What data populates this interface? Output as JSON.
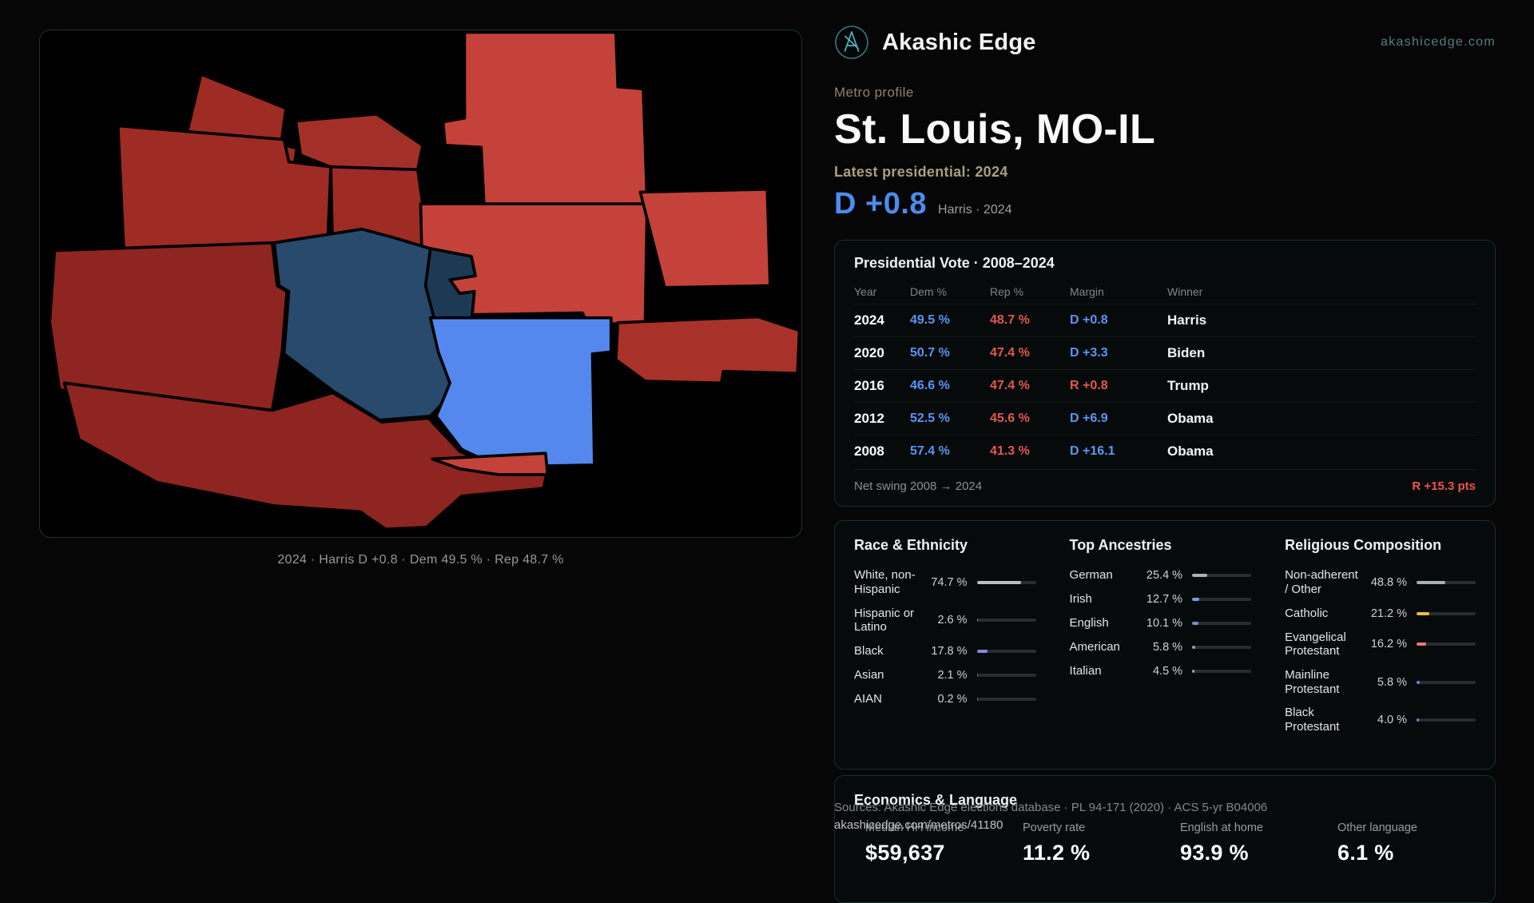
{
  "colors": {
    "dem": "#5b96f2",
    "rep": "#e2594f",
    "accent_teal": "#4fb5c5",
    "swing_red": "#ef5350",
    "headline_blue": "#4a8df0"
  },
  "brand": {
    "name": "Akashic Edge",
    "domain": "akashicedge.com"
  },
  "profile": {
    "eyebrow": "Metro profile",
    "title": "St. Louis, MO-IL",
    "latest_label": "Latest presidential: 2024",
    "margin": "D +0.8",
    "margin_sub": "Harris · 2024"
  },
  "map": {
    "caption": "2024 · Harris D +0.8 · Dem 49.5 % · Rep 48.7 %"
  },
  "pres": {
    "title": "Presidential Vote · 2008–2024",
    "headers": [
      "Year",
      "Dem %",
      "Rep %",
      "Margin",
      "Winner"
    ],
    "rows": [
      {
        "year": "2024",
        "dem": "49.5 %",
        "rep": "48.7 %",
        "margin": "D +0.8",
        "winner": "Harris"
      },
      {
        "year": "2020",
        "dem": "50.7 %",
        "rep": "47.4 %",
        "margin": "D +3.3",
        "winner": "Biden"
      },
      {
        "year": "2016",
        "dem": "46.6 %",
        "rep": "47.4 %",
        "margin": "R +0.8",
        "winner": "Trump"
      },
      {
        "year": "2012",
        "dem": "52.5 %",
        "rep": "45.6 %",
        "margin": "D +6.9",
        "winner": "Obama"
      },
      {
        "year": "2008",
        "dem": "57.4 %",
        "rep": "41.3 %",
        "margin": "D +16.1",
        "winner": "Obama"
      }
    ],
    "net_swing_label": "Net swing 2008 → 2024",
    "net_swing_value": "R +15.3 pts"
  },
  "demographics": {
    "race": {
      "title": "Race & Ethnicity",
      "rows": [
        {
          "label": "White, non-Hispanic",
          "value": "74.7 %",
          "pct": 74.7,
          "color": "#b9bec4"
        },
        {
          "label": "Hispanic or Latino",
          "value": "2.6 %",
          "pct": 2.6,
          "color": "#e3a43c"
        },
        {
          "label": "Black",
          "value": "17.8 %",
          "pct": 17.8,
          "color": "#8b85f0"
        },
        {
          "label": "Asian",
          "value": "2.1 %",
          "pct": 2.1,
          "color": "#49b97e"
        },
        {
          "label": "AIAN",
          "value": "0.2 %",
          "pct": 0.2,
          "color": "#4fb3c4"
        }
      ]
    },
    "ancestries": {
      "title": "Top Ancestries",
      "rows": [
        {
          "label": "German",
          "value": "25.4 %",
          "pct": 25.4,
          "color": "#a9b0b6"
        },
        {
          "label": "Irish",
          "value": "12.7 %",
          "pct": 12.7,
          "color": "#6b9ff5"
        },
        {
          "label": "English",
          "value": "10.1 %",
          "pct": 10.1,
          "color": "#7b8fd0"
        },
        {
          "label": "American",
          "value": "5.8 %",
          "pct": 5.8,
          "color": "#9aa3ab"
        },
        {
          "label": "Italian",
          "value": "4.5 %",
          "pct": 4.5,
          "color": "#a3aab1"
        }
      ]
    },
    "religion": {
      "title": "Religious Composition",
      "rows": [
        {
          "label": "Non-adherent / Other",
          "value": "48.8 %",
          "pct": 48.8,
          "color": "#a9b0b6"
        },
        {
          "label": "Catholic",
          "value": "21.2 %",
          "pct": 21.2,
          "color": "#e6c13c"
        },
        {
          "label": "Evangelical Protestant",
          "value": "16.2 %",
          "pct": 16.2,
          "color": "#ec7a6d"
        },
        {
          "label": "Mainline Protestant",
          "value": "5.8 %",
          "pct": 5.8,
          "color": "#5b8ff2"
        },
        {
          "label": "Black Protestant",
          "value": "4.0 %",
          "pct": 4.0,
          "color": "#8b85f0"
        }
      ]
    }
  },
  "economics": {
    "title": "Economics & Language",
    "stats": [
      {
        "label": "Median HH income",
        "value": "$59,637"
      },
      {
        "label": "Poverty rate",
        "value": "11.2 %"
      },
      {
        "label": "English at home",
        "value": "93.9 %"
      },
      {
        "label": "Other language",
        "value": "6.1 %"
      }
    ]
  },
  "sources": {
    "line1": "Sources: Akashic Edge elections database · PL 94-171 (2020) · ACS 5-yr B04006",
    "line2": "akashicedge.com/metros/41180"
  }
}
